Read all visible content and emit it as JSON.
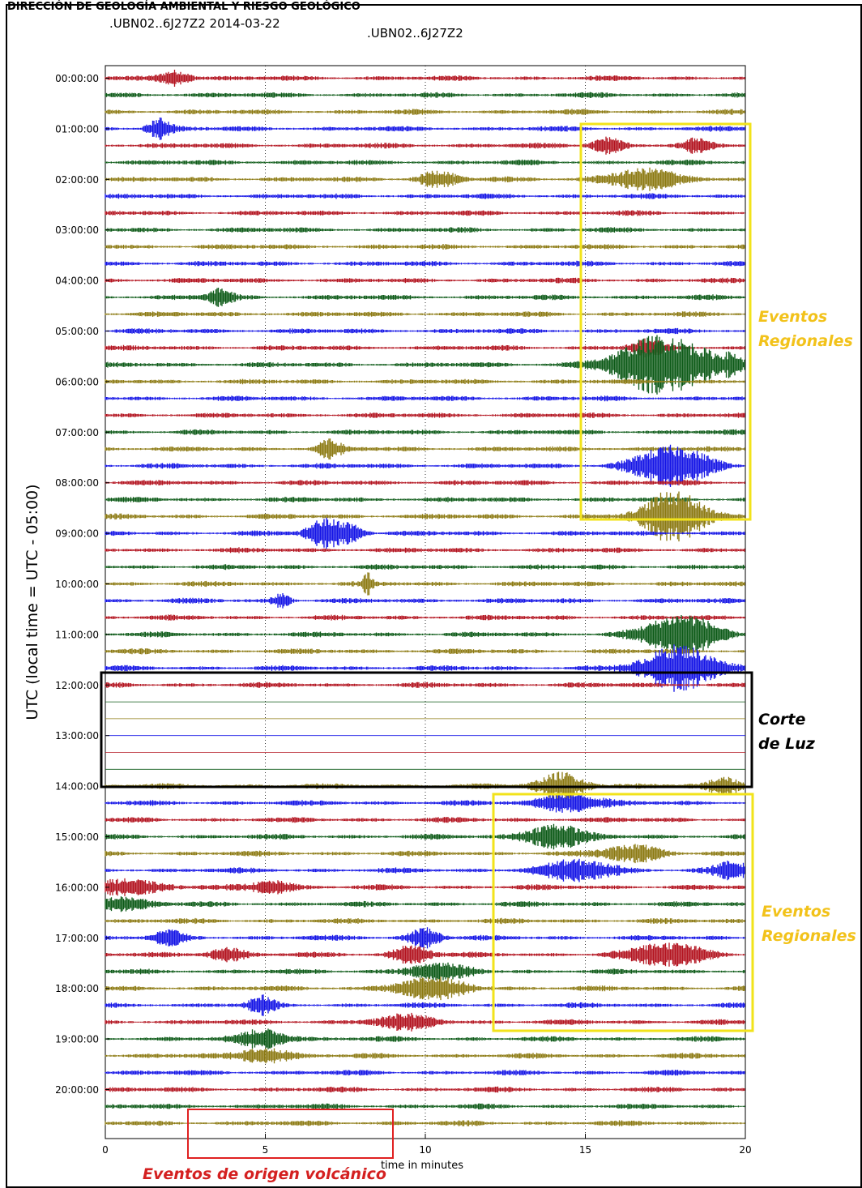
{
  "header_strip": "DIRECCIÓN DE GEOLOGÍA AMBIENTAL Y RIESGO GEOLÓGICO",
  "station_date_title": ".UBN02..6J27Z2 2014-03-22",
  "station_title": ".UBN02..6J27Z2",
  "colors": {
    "red": "#b3131f",
    "green": "#0c5a17",
    "olive": "#8c7a12",
    "blue": "#1414e6",
    "yellow_box": "#f2e31a",
    "black_box": "#000000",
    "red_box": "#e02020"
  },
  "chart_data": {
    "type": "helicorder",
    "title": ".UBN02..6J27Z2",
    "xlabel": "time in minutes",
    "ylabel": "UTC (local time = UTC - 05:00)",
    "xlim": [
      0,
      20
    ],
    "x_ticks": [
      0,
      5,
      10,
      15,
      20
    ],
    "trace_interval_minutes": 20,
    "row_color_cycle": [
      "red",
      "green",
      "olive",
      "blue"
    ],
    "hour_labels": [
      "00:00:00",
      "01:00:00",
      "02:00:00",
      "03:00:00",
      "04:00:00",
      "05:00:00",
      "06:00:00",
      "07:00:00",
      "08:00:00",
      "09:00:00",
      "10:00:00",
      "11:00:00",
      "12:00:00",
      "13:00:00",
      "14:00:00",
      "15:00:00",
      "16:00:00",
      "17:00:00",
      "18:00:00",
      "19:00:00",
      "20:00:00"
    ],
    "rows_total": 63,
    "power_outage_rows": [
      36,
      42
    ],
    "events": [
      {
        "row": 3,
        "minute": 1.7,
        "amp": 3,
        "w": 0.4
      },
      {
        "row": 0,
        "minute": 2.2,
        "amp": 2.5,
        "w": 0.5
      },
      {
        "row": 6,
        "minute": 10.4,
        "amp": 2.5,
        "w": 0.6
      },
      {
        "row": 13,
        "minute": 3.6,
        "amp": 2.5,
        "w": 0.4
      },
      {
        "row": 22,
        "minute": 7.0,
        "amp": 2.5,
        "w": 0.4
      },
      {
        "row": 27,
        "minute": 6.8,
        "amp": 4,
        "w": 0.5
      },
      {
        "row": 27,
        "minute": 7.6,
        "amp": 3,
        "w": 0.5
      },
      {
        "row": 30,
        "minute": 8.2,
        "amp": 3,
        "w": 0.15
      },
      {
        "row": 31,
        "minute": 5.5,
        "amp": 2,
        "w": 0.3
      },
      {
        "row": 6,
        "minute": 16.8,
        "amp": 3,
        "w": 1.2
      },
      {
        "row": 4,
        "minute": 15.7,
        "amp": 2.5,
        "w": 0.5
      },
      {
        "row": 4,
        "minute": 18.5,
        "amp": 2,
        "w": 0.4
      },
      {
        "row": 17,
        "minute": 17.5,
        "amp": 9,
        "w": 1.6
      },
      {
        "row": 16,
        "minute": 16.9,
        "amp": 2.5,
        "w": 0.5
      },
      {
        "row": 17,
        "minute": 19.6,
        "amp": 2,
        "w": 0.3
      },
      {
        "row": 23,
        "minute": 17.7,
        "amp": 6,
        "w": 1.2
      },
      {
        "row": 26,
        "minute": 17.8,
        "amp": 8,
        "w": 1.0
      },
      {
        "row": 33,
        "minute": 18.0,
        "amp": 6,
        "w": 1.2
      },
      {
        "row": 35,
        "minute": 18.0,
        "amp": 7,
        "w": 1.2
      },
      {
        "row": 42,
        "minute": 14.3,
        "amp": 4,
        "w": 0.8
      },
      {
        "row": 42,
        "minute": 19.4,
        "amp": 2.5,
        "w": 0.6
      },
      {
        "row": 43,
        "minute": 14.5,
        "amp": 3,
        "w": 1.0
      },
      {
        "row": 45,
        "minute": 14.0,
        "amp": 4,
        "w": 0.9
      },
      {
        "row": 46,
        "minute": 16.5,
        "amp": 2.5,
        "w": 1.0
      },
      {
        "row": 47,
        "minute": 14.8,
        "amp": 3,
        "w": 1.2
      },
      {
        "row": 47,
        "minute": 19.6,
        "amp": 2.5,
        "w": 0.6
      },
      {
        "row": 48,
        "minute": 0.5,
        "amp": 2.5,
        "w": 1.2
      },
      {
        "row": 48,
        "minute": 5.2,
        "amp": 2,
        "w": 0.7
      },
      {
        "row": 49,
        "minute": 0.4,
        "amp": 2,
        "w": 1.0
      },
      {
        "row": 51,
        "minute": 2.0,
        "amp": 2,
        "w": 0.5
      },
      {
        "row": 51,
        "minute": 10.0,
        "amp": 3,
        "w": 0.5
      },
      {
        "row": 52,
        "minute": 3.8,
        "amp": 2,
        "w": 0.6
      },
      {
        "row": 52,
        "minute": 9.6,
        "amp": 3,
        "w": 0.6
      },
      {
        "row": 52,
        "minute": 17.6,
        "amp": 3.5,
        "w": 1.2
      },
      {
        "row": 53,
        "minute": 10.4,
        "amp": 2.5,
        "w": 1.0
      },
      {
        "row": 54,
        "minute": 10.2,
        "amp": 3,
        "w": 1.2
      },
      {
        "row": 55,
        "minute": 4.9,
        "amp": 2.5,
        "w": 0.4
      },
      {
        "row": 56,
        "minute": 9.4,
        "amp": 2,
        "w": 1.0
      },
      {
        "row": 57,
        "minute": 5.0,
        "amp": 3,
        "w": 0.8
      },
      {
        "row": 58,
        "minute": 5.0,
        "amp": 2.5,
        "w": 0.8
      }
    ]
  },
  "annotations": {
    "regional_1": [
      "Eventos",
      "Regionales"
    ],
    "outage": [
      "Corte",
      "de Luz"
    ],
    "regional_2": [
      "Eventos",
      "Regionales"
    ],
    "volcanic": "Eventos de origen volcánico"
  }
}
